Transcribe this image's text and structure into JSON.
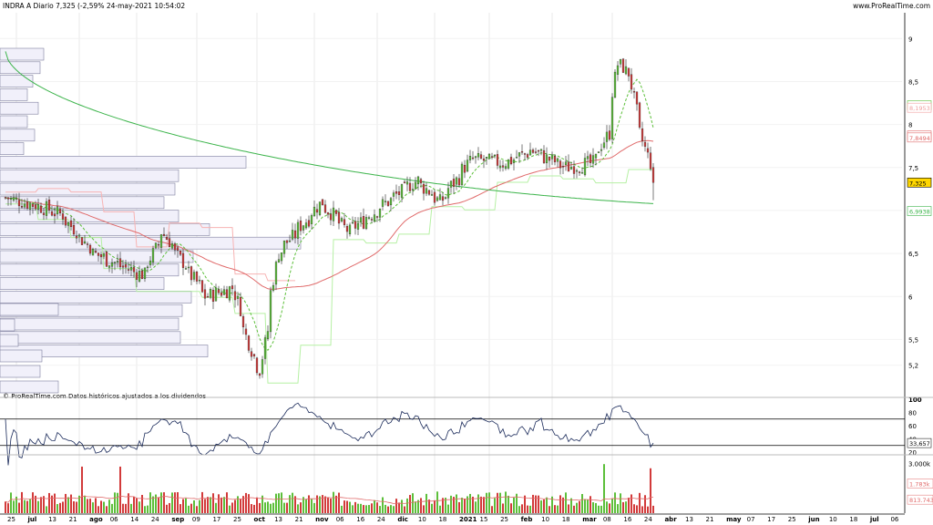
{
  "header": {
    "title": "INDRA A Diario 7,325 (-2,59% 24-may-2021 10:54:02",
    "site": "www.ProRealTime.com"
  },
  "footer": {
    "credit": "© ProRealTime.com Datos históricos ajustados a los dividendos"
  },
  "colors": {
    "bull": "#5cbf3a",
    "bear": "#d23a3a",
    "ma_short": "#5cbf3a",
    "ma_long_red": "#e06a6a",
    "ma_200": "#3cb44b",
    "stop_red": "#f7b3b3",
    "stop_green": "#b6f0a4",
    "volume_profile_fill": "#f1f0fa",
    "volume_profile_stroke": "#7e7e9e",
    "rsi_line": "#1a2a5a"
  },
  "chart_data": [
    {
      "type": "candlestick",
      "name": "price",
      "ylim": [
        4.9,
        9.3
      ],
      "yticks": [
        "9",
        "8,5",
        "8",
        "7,5",
        "7",
        "6,5",
        "6",
        "5,5",
        "5,2"
      ],
      "ytick_values": [
        9,
        8.5,
        8,
        7.5,
        7,
        6.5,
        6,
        5.5,
        5.2
      ],
      "x_labels": [
        "25",
        "jul",
        "13",
        "21",
        "ago",
        "06",
        "14",
        "24",
        "sep",
        "09",
        "17",
        "25",
        "oct",
        "13",
        "21",
        "nov",
        "06",
        "16",
        "24",
        "dic",
        "10",
        "18",
        "2021",
        "15",
        "25",
        "feb",
        "10",
        "18",
        "mar",
        "08",
        "16",
        "24",
        "abr",
        "13",
        "21",
        "may",
        "07",
        "17",
        "25",
        "jun",
        "10",
        "18",
        "jul",
        "06"
      ],
      "last_close": 7.325,
      "right_labels": [
        {
          "value": "8,2242",
          "y": 8.2242,
          "color": "#5cbf3a"
        },
        {
          "value": "8,1953",
          "y": 8.1953,
          "color": "#f0a0a0"
        },
        {
          "value": "7,8728",
          "y": 7.8728,
          "color": "#e06a6a"
        },
        {
          "value": "7,8494",
          "y": 7.8494,
          "color": "#e06a6a"
        },
        {
          "value": "7,325",
          "y": 7.325,
          "color": "#000000",
          "highlight": "#ffd700"
        },
        {
          "value": "6,9938",
          "y": 6.9938,
          "color": "#3cb44b"
        }
      ],
      "keypoints": [
        {
          "d": "2020-06-25",
          "v": 7.15
        },
        {
          "d": "2020-07-13",
          "v": 7.05
        },
        {
          "d": "2020-07-24",
          "v": 6.95
        },
        {
          "d": "2020-08-10",
          "v": 6.5
        },
        {
          "d": "2020-08-24",
          "v": 6.35
        },
        {
          "d": "2020-09-04",
          "v": 6.25
        },
        {
          "d": "2020-09-14",
          "v": 6.75
        },
        {
          "d": "2020-09-21",
          "v": 6.5
        },
        {
          "d": "2020-10-06",
          "v": 6.0
        },
        {
          "d": "2020-10-20",
          "v": 6.1
        },
        {
          "d": "2020-10-30",
          "v": 5.3
        },
        {
          "d": "2020-11-03",
          "v": 5.15
        },
        {
          "d": "2020-11-12",
          "v": 6.5
        },
        {
          "d": "2020-11-25",
          "v": 6.85
        },
        {
          "d": "2020-12-04",
          "v": 7.1
        },
        {
          "d": "2020-12-18",
          "v": 6.75
        },
        {
          "d": "2021-01-04",
          "v": 7.05
        },
        {
          "d": "2021-01-22",
          "v": 7.35
        },
        {
          "d": "2021-02-03",
          "v": 7.1
        },
        {
          "d": "2021-02-19",
          "v": 7.6
        },
        {
          "d": "2021-03-08",
          "v": 7.55
        },
        {
          "d": "2021-03-22",
          "v": 7.7
        },
        {
          "d": "2021-04-08",
          "v": 7.5
        },
        {
          "d": "2021-04-22",
          "v": 7.55
        },
        {
          "d": "2021-04-30",
          "v": 7.9
        },
        {
          "d": "2021-05-05",
          "v": 8.7
        },
        {
          "d": "2021-05-11",
          "v": 8.6
        },
        {
          "d": "2021-05-14",
          "v": 8.15
        },
        {
          "d": "2021-05-21",
          "v": 7.55
        },
        {
          "d": "2021-05-24",
          "v": 7.325
        }
      ]
    },
    {
      "type": "line",
      "name": "RSI",
      "ylim": [
        20,
        100
      ],
      "yticks": [
        "100",
        "80",
        "60",
        "40",
        "20"
      ],
      "ytick_values": [
        100,
        80,
        60,
        40,
        20
      ],
      "levels": [
        70,
        30
      ],
      "last_value": "33,657"
    },
    {
      "type": "bar",
      "name": "volume",
      "yticks": [
        "3.000k"
      ],
      "right_labels": [
        "1.783k",
        "813.743"
      ]
    }
  ]
}
